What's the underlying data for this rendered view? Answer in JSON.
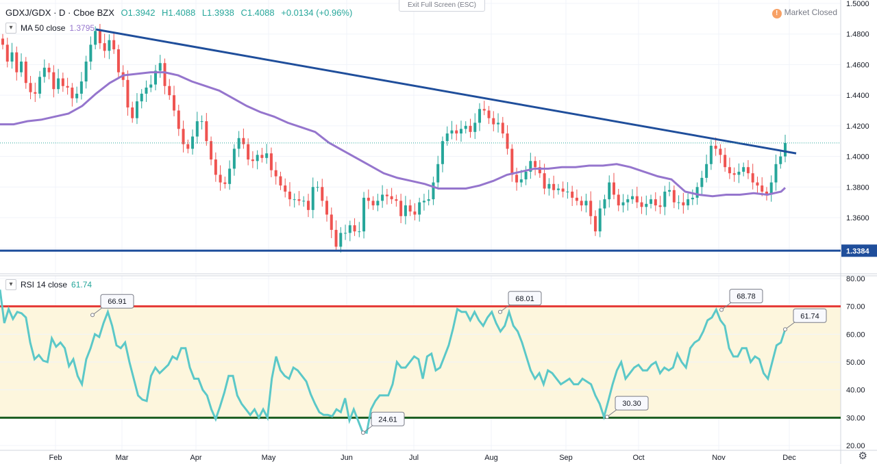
{
  "header": {
    "symbol": "GDXJ/GDX · D · Cboe BZX",
    "open": "O1.3942",
    "high": "H1.4088",
    "low": "L1.3938",
    "close": "C1.4088",
    "change": "+0.0134 (+0.96%)",
    "exit_fullscreen": "Exit Full Screen (ESC)",
    "market_status": "Market Closed",
    "market_icon": "!"
  },
  "ma_legend": {
    "label": "MA 50 close",
    "value": "1.3795"
  },
  "rsi_legend": {
    "label": "RSI 14 close",
    "value": "61.74"
  },
  "colors": {
    "up": "#26a69a",
    "down": "#ef5350",
    "ma": "#9575cd",
    "trend": "#1f4e9b",
    "rsi": "#5bc8c8",
    "rsi_upper": "#e53935",
    "rsi_lower": "#1b5e20",
    "rsi_band": "#fdf6dd"
  },
  "chart_data": [
    {
      "type": "candlestick",
      "title": "GDXJ/GDX · D · Cboe BZX",
      "x_months": [
        "Feb",
        "Mar",
        "Apr",
        "May",
        "Jun",
        "Jul",
        "Aug",
        "Sep",
        "Oct",
        "Nov",
        "Dec"
      ],
      "y_ticks": [
        "1.3600",
        "1.3800",
        "1.4000",
        "1.4200",
        "1.4400",
        "1.4600",
        "1.4800",
        "1.5000"
      ],
      "ylim": [
        1.335,
        1.5
      ],
      "last_price": 1.4088,
      "support_level": 1.3384,
      "support_label": "1.3384",
      "trendline": [
        {
          "x": 140,
          "y": 1.483
        },
        {
          "x": 1162,
          "y": 1.402
        }
      ],
      "closes": [
        1.473,
        1.462,
        1.468,
        1.455,
        1.462,
        1.448,
        1.442,
        1.441,
        1.452,
        1.458,
        1.455,
        1.444,
        1.451,
        1.446,
        1.445,
        1.438,
        1.441,
        1.449,
        1.462,
        1.473,
        1.482,
        1.474,
        1.469,
        1.476,
        1.47,
        1.455,
        1.45,
        1.432,
        1.425,
        1.436,
        1.441,
        1.445,
        1.447,
        1.456,
        1.461,
        1.446,
        1.44,
        1.43,
        1.418,
        1.408,
        1.405,
        1.413,
        1.423,
        1.423,
        1.41,
        1.398,
        1.388,
        1.383,
        1.382,
        1.392,
        1.405,
        1.412,
        1.408,
        1.398,
        1.397,
        1.401,
        1.399,
        1.402,
        1.391,
        1.387,
        1.381,
        1.377,
        1.372,
        1.372,
        1.371,
        1.371,
        1.365,
        1.38,
        1.38,
        1.371,
        1.362,
        1.352,
        1.341,
        1.35,
        1.35,
        1.355,
        1.351,
        1.351,
        1.373,
        1.371,
        1.368,
        1.371,
        1.375,
        1.374,
        1.372,
        1.371,
        1.361,
        1.368,
        1.364,
        1.362,
        1.37,
        1.371,
        1.372,
        1.383,
        1.395,
        1.41,
        1.415,
        1.417,
        1.415,
        1.418,
        1.42,
        1.416,
        1.422,
        1.431,
        1.43,
        1.425,
        1.421,
        1.422,
        1.415,
        1.405,
        1.388,
        1.383,
        1.385,
        1.39,
        1.397,
        1.393,
        1.389,
        1.379,
        1.382,
        1.378,
        1.379,
        1.377,
        1.377,
        1.373,
        1.371,
        1.368,
        1.371,
        1.361,
        1.351,
        1.366,
        1.372,
        1.383,
        1.375,
        1.368,
        1.37,
        1.372,
        1.374,
        1.37,
        1.367,
        1.369,
        1.372,
        1.368,
        1.367,
        1.377,
        1.378,
        1.37,
        1.37,
        1.368,
        1.372,
        1.373,
        1.38,
        1.386,
        1.395,
        1.407,
        1.405,
        1.401,
        1.393,
        1.389,
        1.388,
        1.39,
        1.393,
        1.389,
        1.383,
        1.381,
        1.377,
        1.375,
        1.383,
        1.395,
        1.4,
        1.4088
      ],
      "ma50": [
        {
          "x": 0,
          "y": 1.421
        },
        {
          "x": 20,
          "y": 1.421
        },
        {
          "x": 40,
          "y": 1.423
        },
        {
          "x": 60,
          "y": 1.424
        },
        {
          "x": 80,
          "y": 1.426
        },
        {
          "x": 100,
          "y": 1.428
        },
        {
          "x": 120,
          "y": 1.433
        },
        {
          "x": 140,
          "y": 1.441
        },
        {
          "x": 160,
          "y": 1.448
        },
        {
          "x": 180,
          "y": 1.453
        },
        {
          "x": 200,
          "y": 1.454
        },
        {
          "x": 220,
          "y": 1.455
        },
        {
          "x": 240,
          "y": 1.455
        },
        {
          "x": 260,
          "y": 1.453
        },
        {
          "x": 280,
          "y": 1.449
        },
        {
          "x": 300,
          "y": 1.446
        },
        {
          "x": 320,
          "y": 1.443
        },
        {
          "x": 340,
          "y": 1.438
        },
        {
          "x": 360,
          "y": 1.433
        },
        {
          "x": 380,
          "y": 1.429
        },
        {
          "x": 400,
          "y": 1.426
        },
        {
          "x": 420,
          "y": 1.422
        },
        {
          "x": 440,
          "y": 1.419
        },
        {
          "x": 460,
          "y": 1.416
        },
        {
          "x": 480,
          "y": 1.409
        },
        {
          "x": 500,
          "y": 1.404
        },
        {
          "x": 520,
          "y": 1.399
        },
        {
          "x": 540,
          "y": 1.394
        },
        {
          "x": 560,
          "y": 1.389
        },
        {
          "x": 580,
          "y": 1.386
        },
        {
          "x": 600,
          "y": 1.384
        },
        {
          "x": 620,
          "y": 1.382
        },
        {
          "x": 640,
          "y": 1.379
        },
        {
          "x": 660,
          "y": 1.379
        },
        {
          "x": 680,
          "y": 1.379
        },
        {
          "x": 700,
          "y": 1.381
        },
        {
          "x": 720,
          "y": 1.384
        },
        {
          "x": 740,
          "y": 1.388
        },
        {
          "x": 760,
          "y": 1.39
        },
        {
          "x": 780,
          "y": 1.392
        },
        {
          "x": 800,
          "y": 1.392
        },
        {
          "x": 820,
          "y": 1.393
        },
        {
          "x": 840,
          "y": 1.393
        },
        {
          "x": 860,
          "y": 1.394
        },
        {
          "x": 880,
          "y": 1.394
        },
        {
          "x": 900,
          "y": 1.395
        },
        {
          "x": 920,
          "y": 1.393
        },
        {
          "x": 940,
          "y": 1.39
        },
        {
          "x": 960,
          "y": 1.387
        },
        {
          "x": 980,
          "y": 1.385
        },
        {
          "x": 1000,
          "y": 1.377
        },
        {
          "x": 1020,
          "y": 1.375
        },
        {
          "x": 1040,
          "y": 1.374
        },
        {
          "x": 1060,
          "y": 1.375
        },
        {
          "x": 1080,
          "y": 1.375
        },
        {
          "x": 1100,
          "y": 1.376
        },
        {
          "x": 1120,
          "y": 1.375
        },
        {
          "x": 1140,
          "y": 1.377
        },
        {
          "x": 1146,
          "y": 1.3795
        }
      ]
    },
    {
      "type": "line",
      "title": "RSI 14 close",
      "y_ticks": [
        "20.00",
        "30.00",
        "40.00",
        "50.00",
        "60.00",
        "70.00",
        "80.00"
      ],
      "ylim": [
        20,
        80
      ],
      "upper_band": 70,
      "lower_band": 30,
      "values": [
        76.0,
        64.0,
        69.0,
        65.5,
        68.0,
        67.5,
        66.0,
        57.0,
        51.0,
        52.5,
        50.5,
        50.0,
        58.5,
        55.5,
        57.0,
        55.0,
        48.5,
        51.0,
        45.0,
        42.0,
        51.0,
        55.0,
        60.0,
        59.0,
        64.0,
        68.0,
        63.0,
        56.0,
        55.0,
        57.0,
        50.0,
        44.0,
        38.0,
        36.5,
        36.0,
        45.0,
        48.0,
        46.0,
        47.5,
        49.0,
        52.0,
        51.0,
        55.0,
        55.0,
        48.0,
        44.0,
        44.0,
        40.0,
        38.0,
        33.0,
        29.5,
        34.0,
        39.0,
        45.0,
        45.0,
        38.0,
        35.0,
        33.0,
        31.0,
        33.0,
        30.0,
        33.0,
        30.0,
        44.0,
        52.0,
        47.0,
        45.0,
        44.0,
        48.0,
        47.0,
        45.0,
        43.0,
        38.5,
        35.0,
        32.0,
        31.0,
        31.0,
        30.5,
        33.0,
        32.0,
        37.0,
        29.0,
        33.0,
        29.0,
        25.0,
        24.6,
        33.0,
        36.0,
        38.0,
        38.0,
        38.0,
        42.0,
        50.0,
        48.0,
        48.0,
        50.0,
        52.0,
        51.0,
        44.0,
        52.0,
        53.0,
        47.0,
        48.0,
        52.0,
        56.0,
        62.0,
        69.0,
        68.0,
        68.0,
        65.0,
        68.0,
        65.0,
        63.0,
        66.0,
        68.0,
        64.0,
        61.0,
        63.0,
        68.0,
        63.0,
        61.0,
        57.0,
        52.0,
        47.0,
        44.0,
        46.0,
        42.0,
        47.0,
        46.0,
        44.0,
        42.0,
        43.0,
        44.0,
        42.0,
        42.0,
        44.0,
        43.0,
        42.0,
        38.0,
        35.0,
        30.3,
        36.0,
        42.0,
        47.0,
        50.0,
        44.0,
        46.0,
        48.0,
        49.0,
        47.0,
        47.0,
        49.0,
        50.0,
        46.0,
        48.0,
        47.0,
        48.0,
        53.0,
        50.0,
        48.0,
        55.0,
        57.0,
        58.0,
        61.0,
        65.0,
        66.0,
        68.8,
        65.0,
        63.0,
        55.0,
        52.0,
        52.0,
        55.0,
        55.0,
        50.0,
        52.0,
        51.0,
        46.0,
        44.0,
        50.0,
        56.0,
        57.0,
        61.74
      ],
      "callouts": [
        {
          "x": 135,
          "value": 66.91,
          "label": "66.91"
        },
        {
          "x": 530,
          "value": 24.61,
          "label": "24.61"
        },
        {
          "x": 730,
          "value": 68.01,
          "label": "68.01"
        },
        {
          "x": 886,
          "value": 30.3,
          "label": "30.30"
        },
        {
          "x": 1053,
          "value": 68.78,
          "label": "68.78"
        },
        {
          "x": 1146,
          "value": 61.74,
          "label": "61.74"
        }
      ]
    }
  ]
}
